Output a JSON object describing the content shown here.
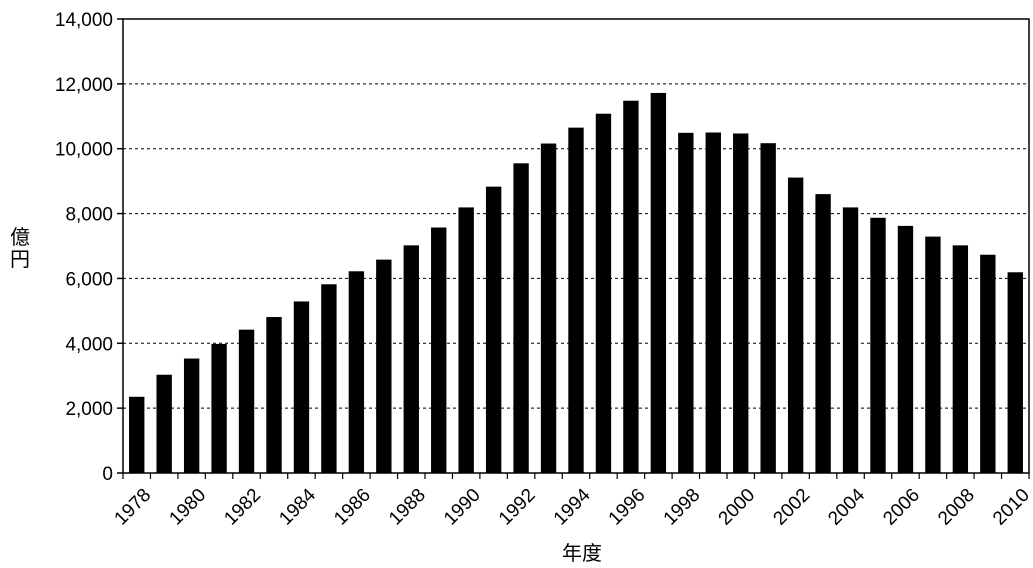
{
  "chart_data": {
    "type": "bar",
    "title": "",
    "xlabel": "年度",
    "ylabel": "億円",
    "ylim": [
      0,
      14000
    ],
    "yticks": [
      0,
      2000,
      4000,
      6000,
      8000,
      10000,
      12000,
      14000
    ],
    "ytick_labels": [
      "0",
      "2,000",
      "4,000",
      "6,000",
      "8,000",
      "10,000",
      "12,000",
      "14,000"
    ],
    "grid": "horizontal dashed",
    "bar_color": "#000000",
    "categories": [
      "1978",
      "1979",
      "1980",
      "1981",
      "1982",
      "1983",
      "1984",
      "1985",
      "1986",
      "1987",
      "1988",
      "1989",
      "1990",
      "1991",
      "1992",
      "1993",
      "1994",
      "1995",
      "1996",
      "1997",
      "1998",
      "1999",
      "2000",
      "2001",
      "2002",
      "2003",
      "2004",
      "2005",
      "2006",
      "2007",
      "2008",
      "2009",
      "2010"
    ],
    "category_labels_shown": [
      "1978",
      "1980",
      "1982",
      "1984",
      "1986",
      "1988",
      "1990",
      "1992",
      "1994",
      "1996",
      "1998",
      "2000",
      "2002",
      "2004",
      "2006",
      "2008",
      "2010"
    ],
    "values": [
      2350,
      3030,
      3530,
      3980,
      4420,
      4810,
      5290,
      5820,
      6220,
      6580,
      7020,
      7570,
      8190,
      8830,
      9550,
      10160,
      10650,
      11080,
      11480,
      11720,
      10490,
      10500,
      10470,
      10170,
      9110,
      8600,
      8190,
      7870,
      7620,
      7290,
      7020,
      6730,
      6190
    ]
  }
}
